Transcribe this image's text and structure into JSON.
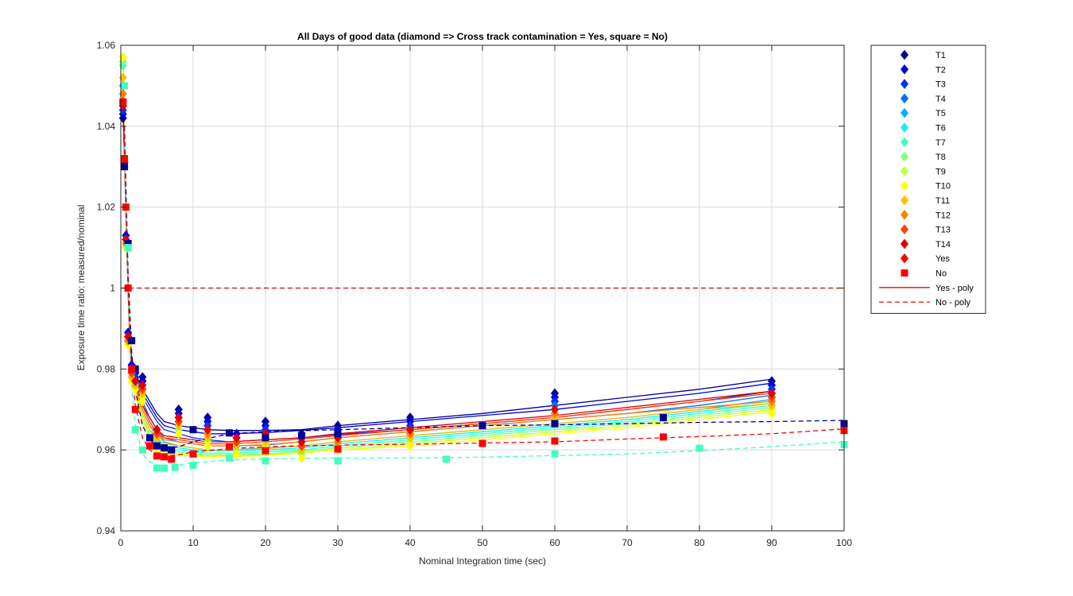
{
  "chart_data": {
    "type": "scatter",
    "title": "All Days of good data  (diamond => Cross track contamination = Yes, square = No)",
    "xlabel": "Nominal Integration time (sec)",
    "ylabel": "Exposure time ratio: measured/nominal",
    "xlim": [
      0,
      100
    ],
    "ylim": [
      0.94,
      1.06
    ],
    "xticks": [
      0,
      10,
      20,
      30,
      40,
      50,
      60,
      70,
      80,
      90,
      100
    ],
    "yticks": [
      0.94,
      0.96,
      0.98,
      1,
      1.02,
      1.04,
      1.06
    ],
    "xtick_labels": [
      "0",
      "10",
      "20",
      "30",
      "40",
      "50",
      "60",
      "70",
      "80",
      "90",
      "100"
    ],
    "ytick_labels": [
      "0.94",
      "0.96",
      "0.98",
      "1",
      "1.02",
      "1.04",
      "1.06"
    ],
    "grid": true,
    "legend_position": "outside-right",
    "reference_line": {
      "y": 1.0,
      "style": "dashed",
      "color": "#e00000"
    },
    "yes_x": [
      0.3,
      0.5,
      0.7,
      1,
      1.5,
      2,
      3,
      5,
      8,
      12,
      16,
      20,
      25,
      30,
      40,
      60,
      90
    ],
    "yes_fit_x": [
      0.3,
      0.5,
      0.7,
      1,
      1.2,
      1.5,
      2,
      2.5,
      3,
      4,
      5,
      6,
      8,
      10,
      12,
      15,
      20,
      25,
      30,
      40,
      50,
      60,
      70,
      80,
      90
    ],
    "series": [
      {
        "name": "T1",
        "color": "#00008f",
        "marker": "diamond",
        "y": [
          1.042,
          1.03,
          1.012,
          0.988,
          0.98,
          0.979,
          0.978,
          0.965,
          0.97,
          0.968,
          0.964,
          0.967,
          0.964,
          0.966,
          0.968,
          0.974,
          0.977
        ],
        "fit_y": [
          1.045,
          1.032,
          1.02,
          1.0,
          0.99,
          0.982,
          0.979,
          0.977,
          0.975,
          0.972,
          0.969,
          0.967,
          0.966,
          0.9655,
          0.965,
          0.9648,
          0.9648,
          0.965,
          0.966,
          0.9675,
          0.969,
          0.971,
          0.973,
          0.975,
          0.9775
        ]
      },
      {
        "name": "T2",
        "color": "#0000df",
        "marker": "diamond",
        "y": [
          1.043,
          1.031,
          1.013,
          0.989,
          0.981,
          0.979,
          0.977,
          0.965,
          0.969,
          0.967,
          0.964,
          0.966,
          0.963,
          0.965,
          0.967,
          0.973,
          0.976
        ],
        "fit_y": [
          1.046,
          1.033,
          1.021,
          1.0,
          0.99,
          0.982,
          0.979,
          0.976,
          0.974,
          0.971,
          0.968,
          0.966,
          0.965,
          0.9645,
          0.964,
          0.964,
          0.9643,
          0.9648,
          0.9655,
          0.967,
          0.9685,
          0.97,
          0.972,
          0.974,
          0.9765
        ]
      },
      {
        "name": "T3",
        "color": "#0030ff",
        "marker": "diamond",
        "y": [
          1.044,
          1.03,
          1.012,
          0.988,
          0.98,
          0.978,
          0.976,
          0.964,
          0.968,
          0.966,
          0.963,
          0.965,
          0.962,
          0.964,
          0.966,
          0.972,
          0.975
        ],
        "fit_y": [
          1.046,
          1.032,
          1.02,
          1.0,
          0.99,
          0.981,
          0.978,
          0.975,
          0.973,
          0.97,
          0.967,
          0.965,
          0.964,
          0.963,
          0.9625,
          0.962,
          0.9625,
          0.963,
          0.9638,
          0.965,
          0.9665,
          0.968,
          0.97,
          0.972,
          0.9745
        ]
      },
      {
        "name": "T4",
        "color": "#0070ff",
        "marker": "diamond",
        "y": [
          1.045,
          1.03,
          1.011,
          0.987,
          0.98,
          0.977,
          0.975,
          0.963,
          0.967,
          0.965,
          0.962,
          0.964,
          0.961,
          0.963,
          0.965,
          0.971,
          0.974
        ],
        "fit_y": [
          1.047,
          1.032,
          1.019,
          1.0,
          0.989,
          0.981,
          0.977,
          0.974,
          0.972,
          0.968,
          0.965,
          0.963,
          0.962,
          0.9615,
          0.961,
          0.961,
          0.9612,
          0.962,
          0.963,
          0.9645,
          0.966,
          0.9675,
          0.969,
          0.971,
          0.9735
        ]
      },
      {
        "name": "T5",
        "color": "#00b0ff",
        "marker": "diamond",
        "y": [
          1.05,
          1.031,
          1.011,
          0.987,
          0.979,
          0.977,
          0.975,
          0.963,
          0.966,
          0.964,
          0.961,
          0.963,
          0.96,
          0.962,
          0.964,
          0.97,
          0.972
        ],
        "fit_y": [
          1.05,
          1.033,
          1.019,
          1.0,
          0.989,
          0.98,
          0.977,
          0.973,
          0.971,
          0.967,
          0.964,
          0.962,
          0.961,
          0.9605,
          0.96,
          0.96,
          0.9605,
          0.961,
          0.962,
          0.9635,
          0.965,
          0.9665,
          0.968,
          0.97,
          0.9725
        ]
      },
      {
        "name": "T6",
        "color": "#10f0ff",
        "marker": "diamond",
        "y": [
          1.052,
          1.031,
          1.011,
          0.987,
          0.979,
          0.976,
          0.974,
          0.962,
          0.966,
          0.963,
          0.961,
          0.962,
          0.96,
          0.961,
          0.963,
          0.969,
          0.971
        ],
        "fit_y": [
          1.052,
          1.033,
          1.019,
          1.0,
          0.989,
          0.98,
          0.976,
          0.972,
          0.97,
          0.966,
          0.963,
          0.961,
          0.9605,
          0.96,
          0.9598,
          0.9598,
          0.96,
          0.9605,
          0.9615,
          0.963,
          0.9645,
          0.966,
          0.9675,
          0.9695,
          0.9715
        ]
      },
      {
        "name": "T7",
        "color": "#40ffbf",
        "marker": "diamond",
        "y": [
          1.055,
          1.03,
          1.01,
          0.986,
          0.978,
          0.976,
          0.974,
          0.962,
          0.965,
          0.963,
          0.96,
          0.962,
          0.959,
          0.961,
          0.963,
          0.968,
          0.971
        ],
        "fit_y": [
          1.055,
          1.034,
          1.018,
          1.0,
          0.988,
          0.979,
          0.976,
          0.972,
          0.969,
          0.965,
          0.962,
          0.9605,
          0.96,
          0.9595,
          0.9592,
          0.9592,
          0.9595,
          0.96,
          0.961,
          0.9625,
          0.964,
          0.9655,
          0.967,
          0.969,
          0.971
        ]
      },
      {
        "name": "T8",
        "color": "#80ff80",
        "marker": "diamond",
        "y": [
          1.056,
          1.03,
          1.01,
          0.986,
          0.978,
          0.975,
          0.973,
          0.961,
          0.965,
          0.962,
          0.96,
          0.961,
          0.959,
          0.96,
          0.962,
          0.968,
          0.97
        ],
        "fit_y": [
          1.056,
          1.034,
          1.018,
          1.0,
          0.988,
          0.979,
          0.975,
          0.971,
          0.968,
          0.964,
          0.961,
          0.96,
          0.9595,
          0.959,
          0.9588,
          0.9588,
          0.959,
          0.9597,
          0.9605,
          0.962,
          0.9635,
          0.965,
          0.9665,
          0.9685,
          0.9705
        ]
      },
      {
        "name": "T9",
        "color": "#bfff40",
        "marker": "diamond",
        "y": [
          1.057,
          1.03,
          1.01,
          0.986,
          0.978,
          0.975,
          0.973,
          0.961,
          0.964,
          0.962,
          0.959,
          0.961,
          0.958,
          0.96,
          0.962,
          0.967,
          0.97
        ],
        "fit_y": [
          1.057,
          1.034,
          1.018,
          1.0,
          0.988,
          0.979,
          0.975,
          0.971,
          0.968,
          0.963,
          0.961,
          0.9595,
          0.959,
          0.9587,
          0.9585,
          0.9585,
          0.9588,
          0.9594,
          0.96,
          0.9615,
          0.963,
          0.9645,
          0.966,
          0.968,
          0.97
        ]
      },
      {
        "name": "T10",
        "color": "#ffff00",
        "marker": "diamond",
        "y": [
          1.057,
          1.03,
          1.01,
          0.986,
          0.977,
          0.975,
          0.972,
          0.96,
          0.964,
          0.961,
          0.959,
          0.96,
          0.958,
          0.96,
          0.961,
          0.967,
          0.969
        ],
        "fit_y": [
          1.057,
          1.034,
          1.018,
          1.0,
          0.988,
          0.978,
          0.974,
          0.97,
          0.967,
          0.963,
          0.9605,
          0.959,
          0.9587,
          0.9585,
          0.9583,
          0.9583,
          0.9586,
          0.9592,
          0.96,
          0.961,
          0.9625,
          0.964,
          0.9655,
          0.9675,
          0.9695
        ]
      },
      {
        "name": "T11",
        "color": "#ffbf00",
        "marker": "diamond",
        "y": [
          1.052,
          1.031,
          1.011,
          0.987,
          0.978,
          0.976,
          0.974,
          0.963,
          0.966,
          0.963,
          0.961,
          0.962,
          0.96,
          0.961,
          0.963,
          0.968,
          0.971
        ],
        "fit_y": [
          1.052,
          1.033,
          1.019,
          1.0,
          0.989,
          0.979,
          0.976,
          0.972,
          0.969,
          0.965,
          0.963,
          0.9615,
          0.961,
          0.9605,
          0.96,
          0.96,
          0.9603,
          0.961,
          0.962,
          0.9635,
          0.965,
          0.9665,
          0.968,
          0.97,
          0.9715
        ]
      },
      {
        "name": "T12",
        "color": "#ff8000",
        "marker": "diamond",
        "y": [
          1.048,
          1.031,
          1.011,
          0.987,
          0.979,
          0.977,
          0.975,
          0.964,
          0.967,
          0.964,
          0.962,
          0.963,
          0.961,
          0.962,
          0.964,
          0.969,
          0.972
        ],
        "fit_y": [
          1.048,
          1.033,
          1.019,
          1.0,
          0.989,
          0.98,
          0.976,
          0.973,
          0.97,
          0.966,
          0.964,
          0.9625,
          0.962,
          0.9615,
          0.961,
          0.961,
          0.9613,
          0.962,
          0.963,
          0.9645,
          0.966,
          0.9675,
          0.969,
          0.9705,
          0.972
        ]
      },
      {
        "name": "T13",
        "color": "#ff4000",
        "marker": "diamond",
        "y": [
          1.046,
          1.031,
          1.012,
          0.988,
          0.979,
          0.977,
          0.975,
          0.964,
          0.967,
          0.965,
          0.962,
          0.964,
          0.961,
          0.963,
          0.965,
          0.97,
          0.973
        ],
        "fit_y": [
          1.046,
          1.033,
          1.02,
          1.0,
          0.989,
          0.98,
          0.977,
          0.973,
          0.971,
          0.967,
          0.964,
          0.963,
          0.9625,
          0.962,
          0.9615,
          0.9615,
          0.962,
          0.9627,
          0.9635,
          0.965,
          0.9665,
          0.968,
          0.97,
          0.972,
          0.974
        ]
      },
      {
        "name": "T14",
        "color": "#df0000",
        "marker": "diamond",
        "y": [
          1.045,
          1.031,
          1.012,
          0.988,
          0.98,
          0.977,
          0.976,
          0.965,
          0.968,
          0.965,
          0.963,
          0.964,
          0.962,
          0.963,
          0.965,
          0.97,
          0.974
        ],
        "fit_y": [
          1.045,
          1.033,
          1.02,
          1.0,
          0.99,
          0.98,
          0.977,
          0.974,
          0.971,
          0.968,
          0.965,
          0.9635,
          0.963,
          0.9625,
          0.962,
          0.962,
          0.9625,
          0.963,
          0.964,
          0.9655,
          0.967,
          0.9685,
          0.9705,
          0.9725,
          0.9745
        ]
      },
      {
        "name": "Yes",
        "color": "#ff0000",
        "marker": "diamond",
        "y": [],
        "fit_y": []
      },
      {
        "name": "No",
        "color": "#ff0000",
        "marker": "square",
        "y": [],
        "fit_y": []
      }
    ],
    "square_series": [
      {
        "color": "#00008f",
        "x": [
          0.5,
          1,
          1.5,
          2,
          4,
          5,
          6,
          7,
          10,
          15,
          20,
          25,
          30,
          50,
          60,
          75,
          100
        ],
        "y": [
          1.03,
          1.011,
          0.987,
          0.98,
          0.963,
          0.961,
          0.9605,
          0.96,
          0.965,
          0.9642,
          0.963,
          0.9635,
          0.964,
          0.966,
          0.9665,
          0.968,
          0.9665
        ],
        "fit_x": [
          0.5,
          1,
          1.5,
          2,
          3,
          4,
          5,
          6,
          8,
          10,
          15,
          20,
          30,
          40,
          50,
          60,
          70,
          80,
          90,
          100
        ],
        "fit_y": [
          1.04,
          1.004,
          0.984,
          0.975,
          0.966,
          0.9625,
          0.961,
          0.9605,
          0.9608,
          0.962,
          0.964,
          0.9645,
          0.965,
          0.9655,
          0.966,
          0.9662,
          0.9665,
          0.9668,
          0.967,
          0.9673
        ]
      },
      {
        "color": "#40ffbf",
        "x": [
          0.5,
          1,
          2,
          3,
          5,
          6,
          7.5,
          10,
          15,
          20,
          30,
          45,
          60,
          80,
          100
        ],
        "y": [
          1.05,
          1.01,
          0.965,
          0.96,
          0.9555,
          0.9555,
          0.9557,
          0.9562,
          0.958,
          0.9573,
          0.9573,
          0.9577,
          0.959,
          0.9604,
          0.9613
        ],
        "fit_x": [
          0.5,
          1,
          1.5,
          2,
          3,
          4,
          5,
          6,
          8,
          10,
          15,
          20,
          30,
          40,
          50,
          60,
          70,
          80,
          90,
          100
        ],
        "fit_y": [
          1.035,
          0.998,
          0.976,
          0.966,
          0.959,
          0.957,
          0.9563,
          0.9561,
          0.9563,
          0.9568,
          0.9575,
          0.9578,
          0.958,
          0.958,
          0.9582,
          0.9586,
          0.959,
          0.9598,
          0.9608,
          0.962
        ]
      },
      {
        "color": "#ff0000",
        "x": [
          0.3,
          0.5,
          0.7,
          1,
          1.5,
          2,
          4,
          5,
          6,
          7,
          10,
          15,
          20,
          30,
          50,
          60,
          75,
          100
        ],
        "y": [
          1.046,
          1.032,
          1.02,
          1.0,
          0.98,
          0.97,
          0.961,
          0.9585,
          0.9583,
          0.9577,
          0.959,
          0.9608,
          0.9598,
          0.9602,
          0.9616,
          0.9622,
          0.9632,
          0.9648
        ],
        "fit_x": [
          0.3,
          0.5,
          1,
          1.5,
          2,
          3,
          4,
          5,
          6,
          8,
          10,
          15,
          20,
          30,
          40,
          50,
          60,
          70,
          80,
          90,
          100
        ],
        "fit_y": [
          1.05,
          1.036,
          1.0,
          0.98,
          0.971,
          0.963,
          0.96,
          0.9588,
          0.9585,
          0.9588,
          0.9595,
          0.9603,
          0.9608,
          0.9612,
          0.9614,
          0.9617,
          0.962,
          0.9627,
          0.9633,
          0.964,
          0.9652
        ]
      }
    ],
    "legend": [
      {
        "label": "T1",
        "kind": "diamond",
        "color": "#00008f"
      },
      {
        "label": "T2",
        "kind": "diamond",
        "color": "#0000df"
      },
      {
        "label": "T3",
        "kind": "diamond",
        "color": "#0030ff"
      },
      {
        "label": "T4",
        "kind": "diamond",
        "color": "#0070ff"
      },
      {
        "label": "T5",
        "kind": "diamond",
        "color": "#00b0ff"
      },
      {
        "label": "T6",
        "kind": "diamond",
        "color": "#10f0ff"
      },
      {
        "label": "T7",
        "kind": "diamond",
        "color": "#40ffbf"
      },
      {
        "label": "T8",
        "kind": "diamond",
        "color": "#80ff80"
      },
      {
        "label": "T9",
        "kind": "diamond",
        "color": "#bfff40"
      },
      {
        "label": "T10",
        "kind": "diamond",
        "color": "#ffff00"
      },
      {
        "label": "T11",
        "kind": "diamond",
        "color": "#ffbf00"
      },
      {
        "label": "T12",
        "kind": "diamond",
        "color": "#ff8000"
      },
      {
        "label": "T13",
        "kind": "diamond",
        "color": "#ff4000"
      },
      {
        "label": "T14",
        "kind": "diamond",
        "color": "#df0000"
      },
      {
        "label": "Yes",
        "kind": "diamond",
        "color": "#ff0000"
      },
      {
        "label": "No",
        "kind": "square",
        "color": "#ff0000"
      },
      {
        "label": "Yes - poly",
        "kind": "solid",
        "color": "#ff0000"
      },
      {
        "label": "No - poly",
        "kind": "dashed",
        "color": "#ff0000"
      }
    ]
  }
}
